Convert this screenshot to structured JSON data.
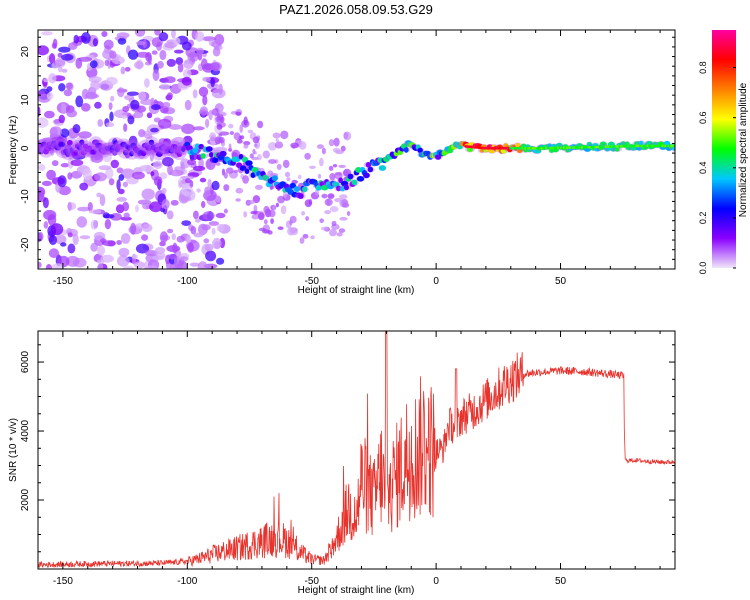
{
  "title": "PAZ1.2026.058.09.53.G29",
  "chart_data": [
    {
      "type": "heatmap",
      "title": "PAZ1.2026.058.09.53.G29",
      "xlabel": "Height of straight line (km)",
      "ylabel": "Frequency (Hz)",
      "xlim": [
        -160,
        96
      ],
      "ylim": [
        -25,
        24.5
      ],
      "xticks": [
        -150,
        -100,
        -50,
        0,
        50
      ],
      "yticks": [
        20,
        10,
        0,
        -10,
        -20
      ],
      "ridge": {
        "x": [
          -100,
          -92,
          -85,
          -78,
          -70,
          -62,
          -55,
          -48,
          -40,
          -33,
          -26,
          -18,
          -10,
          -5,
          0,
          5,
          10,
          20,
          40,
          60,
          80,
          96
        ],
        "y": [
          0,
          -1,
          -2,
          -3,
          -6,
          -8,
          -9,
          -7,
          -8,
          -6,
          -4,
          -2,
          1,
          -1,
          -1.5,
          0,
          0.5,
          0,
          0,
          0.2,
          0.5,
          0.5
        ]
      },
      "colorbar": {
        "label": "Normalized spectral amplitude",
        "ticks": [
          0.0,
          0.2,
          0.4,
          0.6,
          0.8
        ],
        "range": [
          0,
          0.95
        ],
        "colors": [
          "#f0e6fa",
          "#8a00ff",
          "#0000ff",
          "#00c8ff",
          "#00ff00",
          "#ffff00",
          "#ff8000",
          "#ff0000",
          "#ff00a0"
        ]
      }
    },
    {
      "type": "line",
      "xlabel": "Height of straight line (km)",
      "ylabel": "SNR (10 * v/v)",
      "xlim": [
        -160,
        96
      ],
      "ylim": [
        0,
        6900
      ],
      "xticks": [
        -150,
        -100,
        -50,
        0,
        50
      ],
      "yticks": [
        2000,
        4000,
        6000
      ],
      "line_color": "#e8322c",
      "series": [
        {
          "name": "SNR",
          "x": [
            -160,
            -140,
            -120,
            -110,
            -100,
            -95,
            -90,
            -85,
            -80,
            -75,
            -70,
            -65,
            -60,
            -55,
            -50,
            -45,
            -40,
            -35,
            -32,
            -30,
            -27,
            -25,
            -22,
            -20,
            -18,
            -15,
            -12,
            -10,
            -8,
            -5,
            -3,
            0,
            3,
            5,
            8,
            10,
            15,
            20,
            25,
            30,
            35,
            40,
            50,
            60,
            70,
            75,
            76,
            80,
            90,
            96
          ],
          "y": [
            120,
            150,
            160,
            170,
            220,
            300,
            420,
            520,
            600,
            700,
            800,
            900,
            820,
            500,
            280,
            250,
            900,
            1800,
            1500,
            2600,
            2200,
            2000,
            2800,
            1900,
            2400,
            2800,
            3200,
            3500,
            3300,
            3700,
            3500,
            3400,
            3500,
            4200,
            4100,
            4400,
            4600,
            4900,
            5200,
            5500,
            5650,
            5700,
            5750,
            5720,
            5650,
            5600,
            3150,
            3150,
            3100,
            3100
          ]
        }
      ]
    }
  ]
}
